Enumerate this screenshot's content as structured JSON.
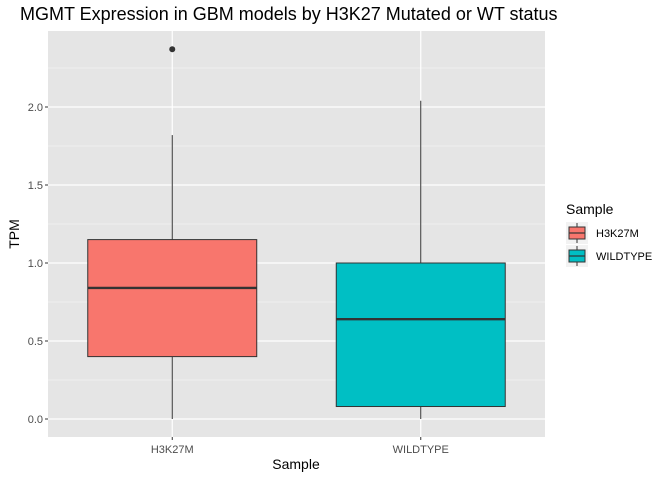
{
  "chart_data": {
    "type": "boxplot",
    "title": "MGMT Expression in GBM models by H3K27 Mutated or WT status",
    "xlabel": "Sample",
    "ylabel": "TPM",
    "ylim": [
      -0.1,
      2.5
    ],
    "yticks": [
      "0.0",
      "0.5",
      "1.0",
      "1.5",
      "2.0"
    ],
    "ytick_values": [
      0,
      0.5,
      1.0,
      1.5,
      2.0
    ],
    "minor_grid": [
      0.25,
      0.75,
      1.25,
      1.75,
      2.25
    ],
    "categories": [
      "H3K27M",
      "WILDTYPE"
    ],
    "grid": true,
    "background": "#e5e5e5",
    "legend": {
      "title": "Sample",
      "placement": "right",
      "entries": [
        "H3K27M",
        "WILDTYPE"
      ]
    },
    "series": [
      {
        "name": "H3K27M",
        "color": "#f8766d",
        "whisker_low": 0.0,
        "q1": 0.4,
        "median": 0.84,
        "q3": 1.15,
        "whisker_high": 1.82,
        "outliers": [
          2.37
        ]
      },
      {
        "name": "WILDTYPE",
        "color": "#00bfc4",
        "whisker_low": 0.0,
        "q1": 0.08,
        "median": 0.64,
        "q3": 1.0,
        "whisker_high": 2.04,
        "outliers": []
      }
    ]
  }
}
